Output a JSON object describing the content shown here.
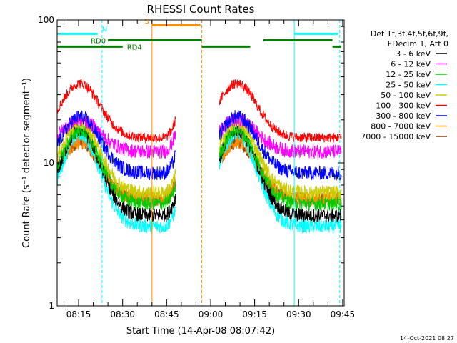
{
  "chart_data": {
    "type": "line",
    "title": "RHESSI Count Rates",
    "xlabel": "Start Time (14-Apr-08 08:07:42)",
    "ylabel": "Count Rate (s⁻¹ detector segment⁻¹)",
    "yscale": "log",
    "ylim": [
      1,
      100
    ],
    "xlim_min": [
      7.7,
      105.5
    ],
    "y_tick_labels": [
      {
        "value": 1,
        "label": "1"
      },
      {
        "value": 10,
        "label": "10"
      },
      {
        "value": 100,
        "label": "100"
      }
    ],
    "x_tick_labels": [
      {
        "value": 15,
        "label": "08:15"
      },
      {
        "value": 30,
        "label": "08:30"
      },
      {
        "value": 45,
        "label": "08:45"
      },
      {
        "value": 60,
        "label": "09:00"
      },
      {
        "value": 75,
        "label": "09:15"
      },
      {
        "value": 90,
        "label": "09:30"
      },
      {
        "value": 105,
        "label": "09:45"
      }
    ],
    "legend_header": [
      "Det 1f,3f,4f,5f,6f,9f,",
      "FDecim 1, Att 0"
    ],
    "series": [
      {
        "name": "3 - 6 keV",
        "color": "#000000",
        "peak": 17,
        "floor": 4.3
      },
      {
        "name": "6 - 12 keV",
        "color": "#ff00ff",
        "peak": 20,
        "floor": 12
      },
      {
        "name": "12 - 25 keV",
        "color": "#00cc00",
        "peak": 17,
        "floor": 5.2
      },
      {
        "name": "25 - 50 keV",
        "color": "#00ffff",
        "peak": 16,
        "floor": 3.6
      },
      {
        "name": "50 - 100 keV",
        "color": "#cccc00",
        "peak": 19,
        "floor": 6.2
      },
      {
        "name": "100 - 300 keV",
        "color": "#ff0000",
        "peak": 36,
        "floor": 15
      },
      {
        "name": "300 - 800 keV",
        "color": "#0000ff",
        "peak": 21,
        "floor": 8.5
      },
      {
        "name": "800 - 7000 keV",
        "color": "#ff8c00",
        "peak": 14,
        "floor": 5.6
      },
      {
        "name": "7000 - 15000 keV",
        "color": "#8b4513",
        "peak": 14,
        "floor": 5.6
      }
    ],
    "data_segments_min": [
      [
        7.7,
        48.0
      ],
      [
        63.0,
        104.5
      ]
    ],
    "vertical_lines": [
      {
        "x": 7.7,
        "color": "#00ffff",
        "style": "solid"
      },
      {
        "x": 23.0,
        "color": "#00ffff",
        "style": "dashed"
      },
      {
        "x": 40.0,
        "color": "#ff8c00",
        "style": "solid"
      },
      {
        "x": 57.0,
        "color": "#ff8c00",
        "style": "dashed"
      },
      {
        "x": 88.5,
        "color": "#00ffff",
        "style": "solid"
      },
      {
        "x": 104.0,
        "color": "#00ffff",
        "style": "dashed"
      }
    ],
    "flag_bars": [
      {
        "label": "N",
        "color": "#00ffff",
        "y": 80,
        "segments": [
          [
            7.7,
            21.5
          ],
          [
            88.5,
            103.5
          ]
        ]
      },
      {
        "label": "S",
        "color": "#ff8c00",
        "y": 92,
        "segments": [
          [
            40.0,
            56.5
          ]
        ]
      },
      {
        "label": "RD0",
        "color": "#008000",
        "y": 72,
        "segments": [
          [
            25.0,
            57.0
          ],
          [
            78.0,
            101.5
          ]
        ]
      },
      {
        "label": "RD4",
        "color": "#008000",
        "y": 65,
        "segments": [
          [
            7.7,
            30.0
          ],
          [
            57.0,
            73.5
          ],
          [
            101.5,
            104.5
          ]
        ]
      }
    ],
    "timestamp": "14-Oct-2021 08:27"
  }
}
